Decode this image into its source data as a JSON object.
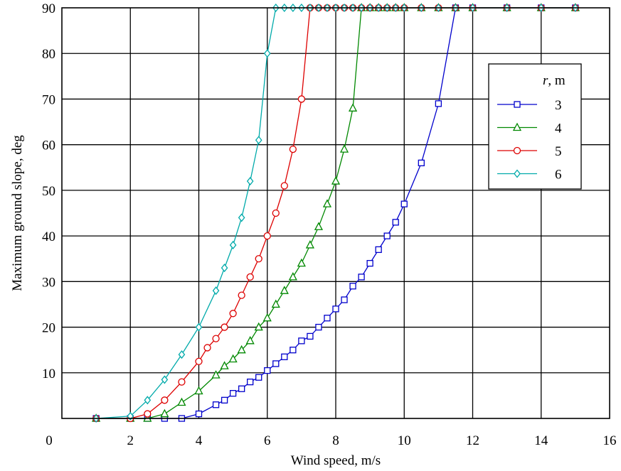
{
  "chart_data": {
    "type": "line",
    "xlabel": "Wind speed, m/s",
    "ylabel": "Maximum ground slope, deg",
    "xlim": [
      0,
      16
    ],
    "ylim": [
      0,
      90
    ],
    "xticks": [
      "0",
      "2",
      "4",
      "6",
      "8",
      "10",
      "12",
      "14",
      "16"
    ],
    "yticks": [
      "10",
      "20",
      "30",
      "40",
      "50",
      "60",
      "70",
      "80",
      "90"
    ],
    "grid": true,
    "legend": {
      "title_var": "r",
      "title_unit": ", m",
      "placement": "right"
    },
    "series": [
      {
        "name": "3",
        "color": "#0000cc",
        "marker": "square",
        "x": [
          1,
          2,
          2.5,
          3,
          3.5,
          4,
          4.5,
          4.75,
          5,
          5.25,
          5.5,
          5.75,
          6,
          6.25,
          6.5,
          6.75,
          7,
          7.25,
          7.5,
          7.75,
          8,
          8.25,
          8.5,
          8.75,
          9,
          9.25,
          9.5,
          9.75,
          10,
          10.5,
          11,
          11.5,
          12,
          13,
          14,
          15
        ],
        "y": [
          0,
          0,
          0,
          0,
          0,
          1,
          3,
          4,
          5.5,
          6.5,
          8,
          9,
          10.5,
          12,
          13.5,
          15,
          17,
          18,
          20,
          22,
          24,
          26,
          29,
          31,
          34,
          37,
          40,
          43,
          47,
          56,
          69,
          90,
          90,
          90,
          90,
          90
        ]
      },
      {
        "name": "4",
        "color": "#008800",
        "marker": "triangle",
        "x": [
          1,
          2,
          2.5,
          3,
          3.5,
          4,
          4.5,
          4.75,
          5,
          5.25,
          5.5,
          5.75,
          6,
          6.25,
          6.5,
          6.75,
          7,
          7.25,
          7.5,
          7.75,
          8,
          8.25,
          8.5,
          8.75,
          9,
          9.25,
          9.5,
          9.75,
          10,
          10.5,
          11,
          11.5,
          12,
          13,
          14,
          15
        ],
        "y": [
          0,
          0,
          0,
          1,
          3.5,
          6,
          9.5,
          11.5,
          13,
          15,
          17,
          20,
          22,
          25,
          28,
          31,
          34,
          38,
          42,
          47,
          52,
          59,
          68,
          90,
          90,
          90,
          90,
          90,
          90,
          90,
          90,
          90,
          90,
          90,
          90,
          90
        ]
      },
      {
        "name": "5",
        "color": "#dd0000",
        "marker": "circle",
        "x": [
          1,
          2,
          2.5,
          3,
          3.5,
          4,
          4.25,
          4.5,
          4.75,
          5,
          5.25,
          5.5,
          5.75,
          6,
          6.25,
          6.5,
          6.75,
          7,
          7.25,
          7.5,
          7.75,
          8,
          8.25,
          8.5,
          8.75,
          9,
          9.25,
          9.5,
          9.75,
          10,
          10.5,
          11,
          11.5,
          12,
          13,
          14,
          15
        ],
        "y": [
          0,
          0,
          1,
          4,
          8,
          12.5,
          15.5,
          17.5,
          20,
          23,
          27,
          31,
          35,
          40,
          45,
          51,
          59,
          70,
          90,
          90,
          90,
          90,
          90,
          90,
          90,
          90,
          90,
          90,
          90,
          90,
          90,
          90,
          90,
          90,
          90,
          90,
          90
        ]
      },
      {
        "name": "6",
        "color": "#00aaaa",
        "marker": "diamond",
        "x": [
          1,
          2,
          2.5,
          3,
          3.5,
          4,
          4.5,
          4.75,
          5,
          5.25,
          5.5,
          5.75,
          6,
          6.25,
          6.5,
          6.75,
          7,
          7.25,
          7.5,
          7.75,
          8,
          8.25,
          8.5,
          8.75,
          9,
          9.25,
          9.5,
          9.75,
          10,
          10.5,
          11,
          11.5,
          12,
          13,
          14,
          15
        ],
        "y": [
          0,
          0.5,
          4,
          8.5,
          14,
          20,
          28,
          33,
          38,
          44,
          52,
          61,
          80,
          90,
          90,
          90,
          90,
          90,
          90,
          90,
          90,
          90,
          90,
          90,
          90,
          90,
          90,
          90,
          90,
          90,
          90,
          90,
          90,
          90,
          90,
          90
        ]
      }
    ]
  }
}
